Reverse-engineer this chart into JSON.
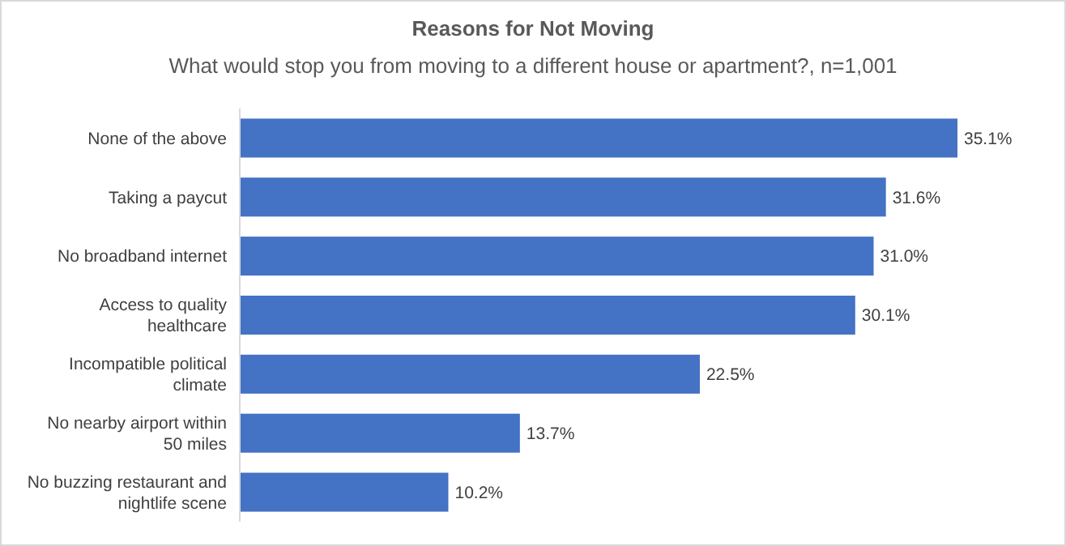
{
  "chart_data": {
    "type": "bar",
    "orientation": "horizontal",
    "title": "Reasons for Not Moving",
    "subtitle": "What would stop you from moving to a different house or apartment?, n=1,001",
    "categories": [
      "None of the above",
      "Taking a paycut",
      "No broadband internet",
      "Access to quality healthcare",
      "Incompatible political climate",
      "No nearby airport within 50 miles",
      "No buzzing restaurant and nightlife scene"
    ],
    "values": [
      35.1,
      31.6,
      31.0,
      30.1,
      22.5,
      13.7,
      10.2
    ],
    "value_labels": [
      "35.1%",
      "31.6%",
      "31.0%",
      "30.1%",
      "22.5%",
      "13.7%",
      "10.2%"
    ],
    "color": "#4472c4",
    "grid": false
  }
}
